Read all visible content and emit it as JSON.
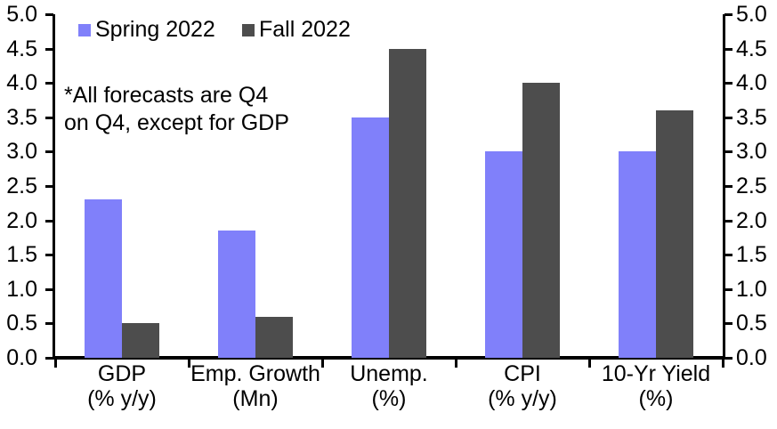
{
  "annotation": {
    "line1": "*All forecasts are Q4",
    "line2": "on Q4, except for GDP"
  },
  "chart_data": {
    "type": "bar",
    "title": "",
    "categories": [
      "GDP",
      "Emp. Growth",
      "Unemp.",
      "CPI",
      "10-Yr Yield"
    ],
    "category_sublabels": [
      "(% y/y)",
      "(Mn)",
      "(%)",
      "(% y/y)",
      "(%)"
    ],
    "series": [
      {
        "name": "Spring 2022",
        "color": "#8080FA",
        "values": [
          2.3,
          1.85,
          3.5,
          3.0,
          3.0
        ]
      },
      {
        "name": "Fall 2022",
        "color": "#4D4D4D",
        "values": [
          0.5,
          0.6,
          4.5,
          4.0,
          3.6
        ]
      }
    ],
    "ylim": [
      0,
      5
    ],
    "ytick_step": 0.5,
    "ytick_labels": [
      "0.0",
      "0.5",
      "1.0",
      "1.5",
      "2.0",
      "2.5",
      "3.0",
      "3.5",
      "4.0",
      "4.5",
      "5.0"
    ],
    "grid": false,
    "legend_position": "top-left-inside",
    "axes": "dual y axes (left and right), bottom x axis, no gridlines",
    "annotation_text": "*All forecasts are Q4 on Q4, except for GDP"
  }
}
